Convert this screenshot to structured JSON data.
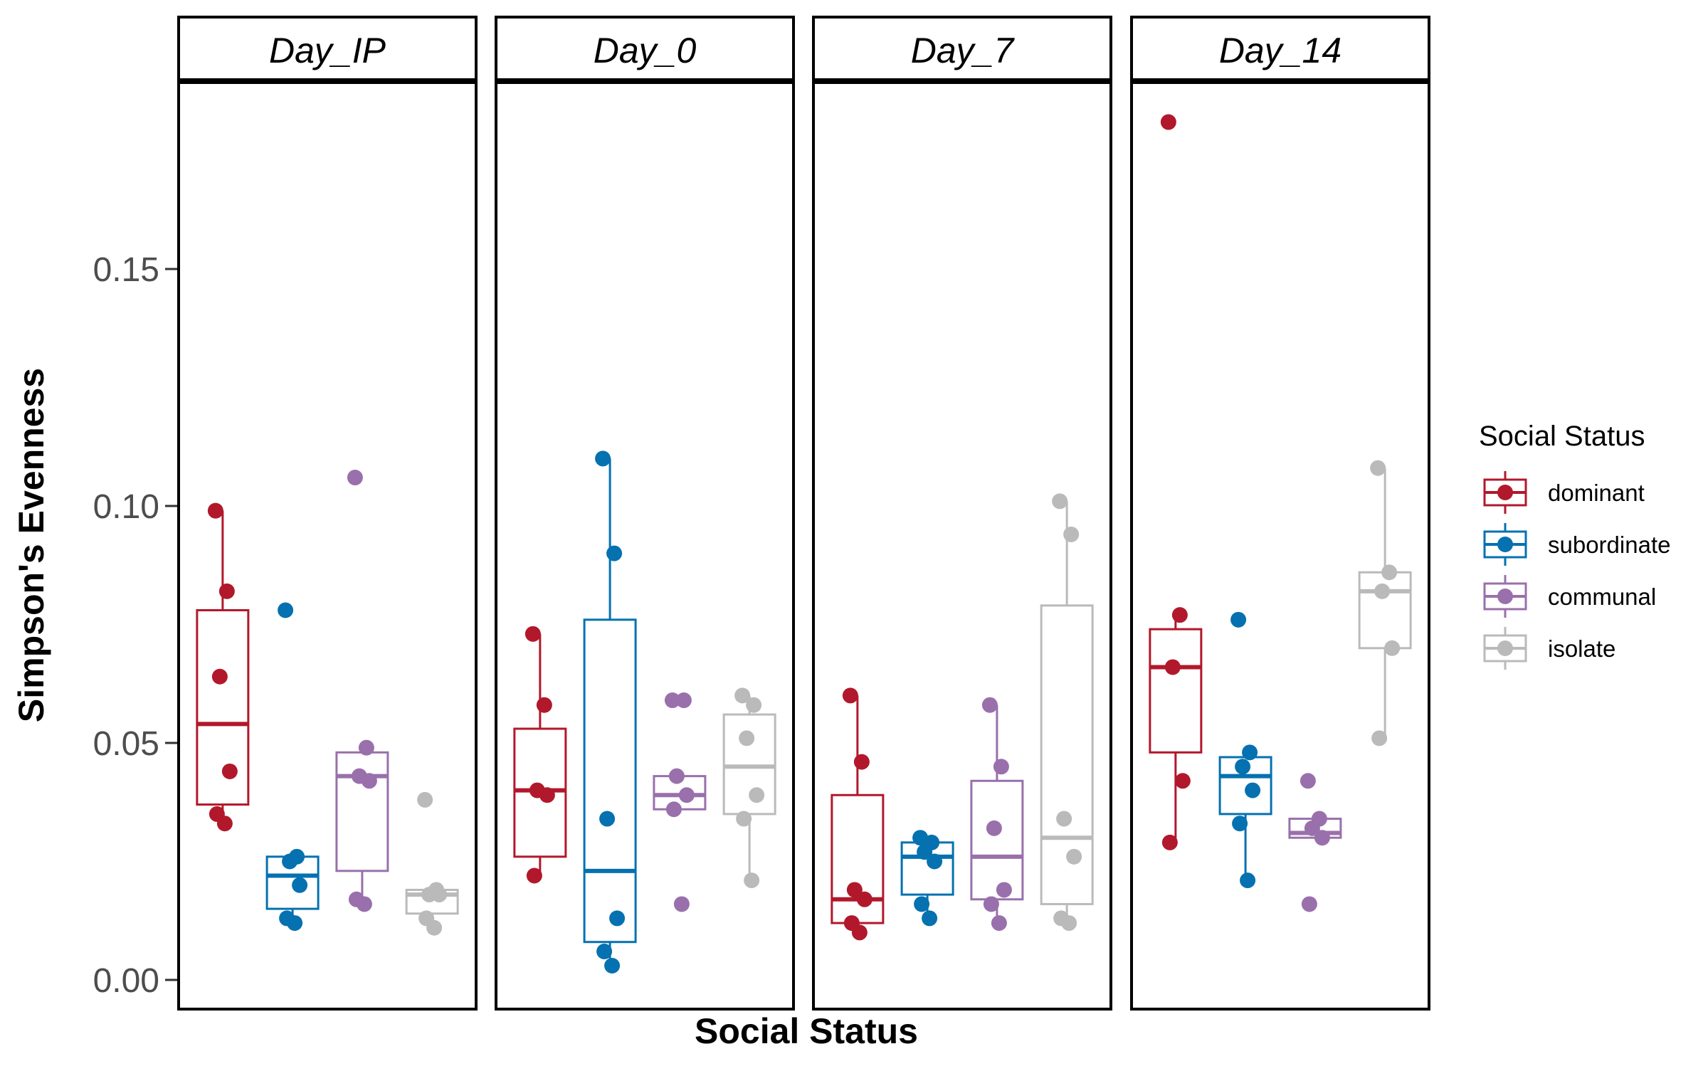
{
  "chart_data": {
    "type": "box",
    "xlabel": "Social Status",
    "ylabel": "Simpson's Evenness",
    "ylim": [
      0,
      0.185
    ],
    "yticks": [
      0.0,
      0.05,
      0.1,
      0.15
    ],
    "ytick_labels": [
      "0.00",
      "0.05",
      "0.10",
      "0.15"
    ],
    "facets": [
      "Day_IP",
      "Day_0",
      "Day_7",
      "Day_14"
    ],
    "legend": {
      "title": "Social Status",
      "position": "right",
      "items": [
        {
          "label": "dominant",
          "color": "#B2182B"
        },
        {
          "label": "subordinate",
          "color": "#0571B0"
        },
        {
          "label": "communal",
          "color": "#9970AB"
        },
        {
          "label": "isolate",
          "color": "#BABABA"
        }
      ]
    },
    "categories": [
      "dominant",
      "subordinate",
      "communal",
      "isolate"
    ],
    "panels": [
      {
        "facet": "Day_IP",
        "groups": [
          {
            "category": "dominant",
            "lower_whisker": 0.033,
            "q1": 0.037,
            "median": 0.054,
            "q3": 0.078,
            "upper_whisker": 0.099,
            "points": [
              0.099,
              0.082,
              0.064,
              0.044,
              0.035,
              0.033
            ]
          },
          {
            "category": "subordinate",
            "lower_whisker": 0.012,
            "q1": 0.015,
            "median": 0.022,
            "q3": 0.026,
            "upper_whisker": 0.026,
            "points": [
              0.078,
              0.026,
              0.025,
              0.02,
              0.013,
              0.012
            ]
          },
          {
            "category": "communal",
            "lower_whisker": 0.016,
            "q1": 0.023,
            "median": 0.043,
            "q3": 0.048,
            "upper_whisker": 0.048,
            "points": [
              0.106,
              0.049,
              0.043,
              0.042,
              0.017,
              0.016
            ]
          },
          {
            "category": "isolate",
            "lower_whisker": 0.011,
            "q1": 0.014,
            "median": 0.018,
            "q3": 0.019,
            "upper_whisker": 0.019,
            "points": [
              0.038,
              0.019,
              0.018,
              0.018,
              0.013,
              0.011
            ]
          }
        ]
      },
      {
        "facet": "Day_0",
        "groups": [
          {
            "category": "dominant",
            "lower_whisker": 0.022,
            "q1": 0.026,
            "median": 0.04,
            "q3": 0.053,
            "upper_whisker": 0.073,
            "points": [
              0.073,
              0.058,
              0.04,
              0.039,
              0.022
            ]
          },
          {
            "category": "subordinate",
            "lower_whisker": 0.003,
            "q1": 0.008,
            "median": 0.023,
            "q3": 0.076,
            "upper_whisker": 0.11,
            "points": [
              0.11,
              0.09,
              0.034,
              0.013,
              0.006,
              0.003
            ]
          },
          {
            "category": "communal",
            "lower_whisker": 0.036,
            "q1": 0.036,
            "median": 0.039,
            "q3": 0.043,
            "upper_whisker": 0.043,
            "points": [
              0.059,
              0.059,
              0.043,
              0.039,
              0.036,
              0.016
            ]
          },
          {
            "category": "isolate",
            "lower_whisker": 0.021,
            "q1": 0.035,
            "median": 0.045,
            "q3": 0.056,
            "upper_whisker": 0.06,
            "points": [
              0.06,
              0.058,
              0.051,
              0.039,
              0.034,
              0.021
            ]
          }
        ]
      },
      {
        "facet": "Day_7",
        "groups": [
          {
            "category": "dominant",
            "lower_whisker": 0.01,
            "q1": 0.012,
            "median": 0.017,
            "q3": 0.039,
            "upper_whisker": 0.06,
            "points": [
              0.06,
              0.046,
              0.019,
              0.017,
              0.012,
              0.01
            ]
          },
          {
            "category": "subordinate",
            "lower_whisker": 0.013,
            "q1": 0.018,
            "median": 0.026,
            "q3": 0.029,
            "upper_whisker": 0.03,
            "points": [
              0.03,
              0.029,
              0.027,
              0.025,
              0.016,
              0.013
            ]
          },
          {
            "category": "communal",
            "lower_whisker": 0.012,
            "q1": 0.017,
            "median": 0.026,
            "q3": 0.042,
            "upper_whisker": 0.058,
            "points": [
              0.058,
              0.045,
              0.032,
              0.019,
              0.016,
              0.012
            ]
          },
          {
            "category": "isolate",
            "lower_whisker": 0.012,
            "q1": 0.016,
            "median": 0.03,
            "q3": 0.079,
            "upper_whisker": 0.101,
            "points": [
              0.101,
              0.094,
              0.034,
              0.026,
              0.013,
              0.012
            ]
          }
        ]
      },
      {
        "facet": "Day_14",
        "groups": [
          {
            "category": "dominant",
            "lower_whisker": 0.029,
            "q1": 0.048,
            "median": 0.066,
            "q3": 0.074,
            "upper_whisker": 0.077,
            "points": [
              0.181,
              0.077,
              0.066,
              0.042,
              0.029
            ]
          },
          {
            "category": "subordinate",
            "lower_whisker": 0.021,
            "q1": 0.035,
            "median": 0.043,
            "q3": 0.047,
            "upper_whisker": 0.048,
            "points": [
              0.076,
              0.048,
              0.045,
              0.04,
              0.033,
              0.021
            ]
          },
          {
            "category": "communal",
            "lower_whisker": 0.03,
            "q1": 0.03,
            "median": 0.031,
            "q3": 0.034,
            "upper_whisker": 0.034,
            "points": [
              0.042,
              0.034,
              0.032,
              0.03,
              0.016
            ]
          },
          {
            "category": "isolate",
            "lower_whisker": 0.051,
            "q1": 0.07,
            "median": 0.082,
            "q3": 0.086,
            "upper_whisker": 0.108,
            "points": [
              0.108,
              0.086,
              0.082,
              0.07,
              0.051
            ]
          }
        ]
      }
    ]
  }
}
